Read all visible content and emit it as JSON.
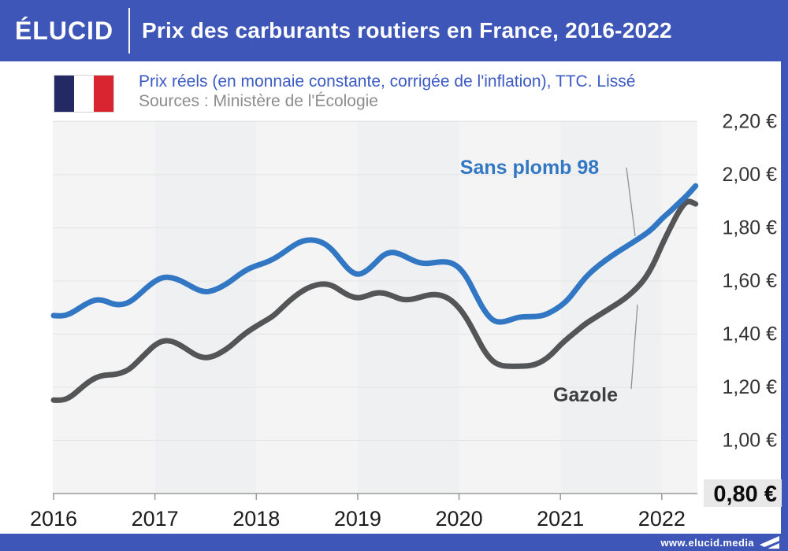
{
  "header": {
    "logo": "ÉLUCID",
    "title": "Prix des carburants routiers en France, 2016-2022"
  },
  "subheader": {
    "subtitle": "Prix réels (en monnaie constante, corrigée de l'inflation), TTC. Lissé",
    "source": "Sources : Ministère de l'Écologie",
    "flag_colors": [
      "#232A63",
      "#FFFFFF",
      "#D8252F"
    ]
  },
  "footer": {
    "url": "www.elucid.media"
  },
  "colors": {
    "brand_blue": "#3E56B8",
    "line_blue": "#3277C4",
    "line_gray": "#545556",
    "band_light": "#f4f4f5",
    "band_dark": "#eff0f1",
    "gridline": "#e4e4e5",
    "axis": "#9a9a9a",
    "tick_label": "#1c1c1c",
    "y_label": "#333333",
    "highlight_bg": "#e8e8e8",
    "leader_line": "#909090"
  },
  "chart_data": {
    "type": "line",
    "title": "Prix des carburants routiers en France, 2016-2022",
    "x_start_year": 2016,
    "months_per_point": 1,
    "x_tick_labels": [
      "2016",
      "2017",
      "2018",
      "2019",
      "2020",
      "2021",
      "2022"
    ],
    "y_tick_labels": [
      "2,20 €",
      "2,00 €",
      "1,80 €",
      "1,60 €",
      "1,40 €",
      "1,20 €",
      "1,00 €",
      "0,80 €"
    ],
    "y_tick_values": [
      2.2,
      2.0,
      1.8,
      1.6,
      1.4,
      1.2,
      1.0,
      0.8
    ],
    "ylim": [
      0.8,
      2.2
    ],
    "unit": "€ / litre",
    "grid": "horizontal",
    "legend_position": "inline-annotations",
    "series": [
      {
        "name": "Sans plomb 98",
        "color": "#3277C4",
        "values": [
          1.47,
          1.467,
          1.477,
          1.497,
          1.517,
          1.53,
          1.527,
          1.513,
          1.51,
          1.52,
          1.545,
          1.575,
          1.6,
          1.615,
          1.613,
          1.602,
          1.585,
          1.567,
          1.558,
          1.565,
          1.58,
          1.6,
          1.625,
          1.645,
          1.658,
          1.668,
          1.682,
          1.702,
          1.725,
          1.745,
          1.755,
          1.754,
          1.743,
          1.718,
          1.678,
          1.64,
          1.622,
          1.636,
          1.665,
          1.698,
          1.71,
          1.702,
          1.686,
          1.671,
          1.665,
          1.669,
          1.673,
          1.67,
          1.652,
          1.61,
          1.546,
          1.487,
          1.45,
          1.444,
          1.453,
          1.464,
          1.466,
          1.466,
          1.47,
          1.485,
          1.505,
          1.533,
          1.575,
          1.615,
          1.645,
          1.67,
          1.693,
          1.714,
          1.734,
          1.754,
          1.775,
          1.8,
          1.835,
          1.862,
          1.893,
          1.922,
          1.958
        ]
      },
      {
        "name": "Gazole",
        "color": "#545556",
        "values": [
          1.152,
          1.15,
          1.163,
          1.19,
          1.217,
          1.237,
          1.246,
          1.247,
          1.253,
          1.268,
          1.298,
          1.33,
          1.36,
          1.376,
          1.374,
          1.359,
          1.338,
          1.318,
          1.31,
          1.317,
          1.334,
          1.356,
          1.385,
          1.41,
          1.43,
          1.449,
          1.468,
          1.498,
          1.528,
          1.553,
          1.573,
          1.585,
          1.59,
          1.584,
          1.563,
          1.544,
          1.535,
          1.543,
          1.555,
          1.556,
          1.546,
          1.532,
          1.529,
          1.535,
          1.545,
          1.55,
          1.546,
          1.53,
          1.5,
          1.455,
          1.395,
          1.335,
          1.296,
          1.281,
          1.279,
          1.279,
          1.28,
          1.285,
          1.3,
          1.325,
          1.36,
          1.388,
          1.414,
          1.44,
          1.46,
          1.48,
          1.5,
          1.52,
          1.543,
          1.572,
          1.608,
          1.662,
          1.735,
          1.8,
          1.862,
          1.905,
          1.89
        ]
      }
    ]
  }
}
